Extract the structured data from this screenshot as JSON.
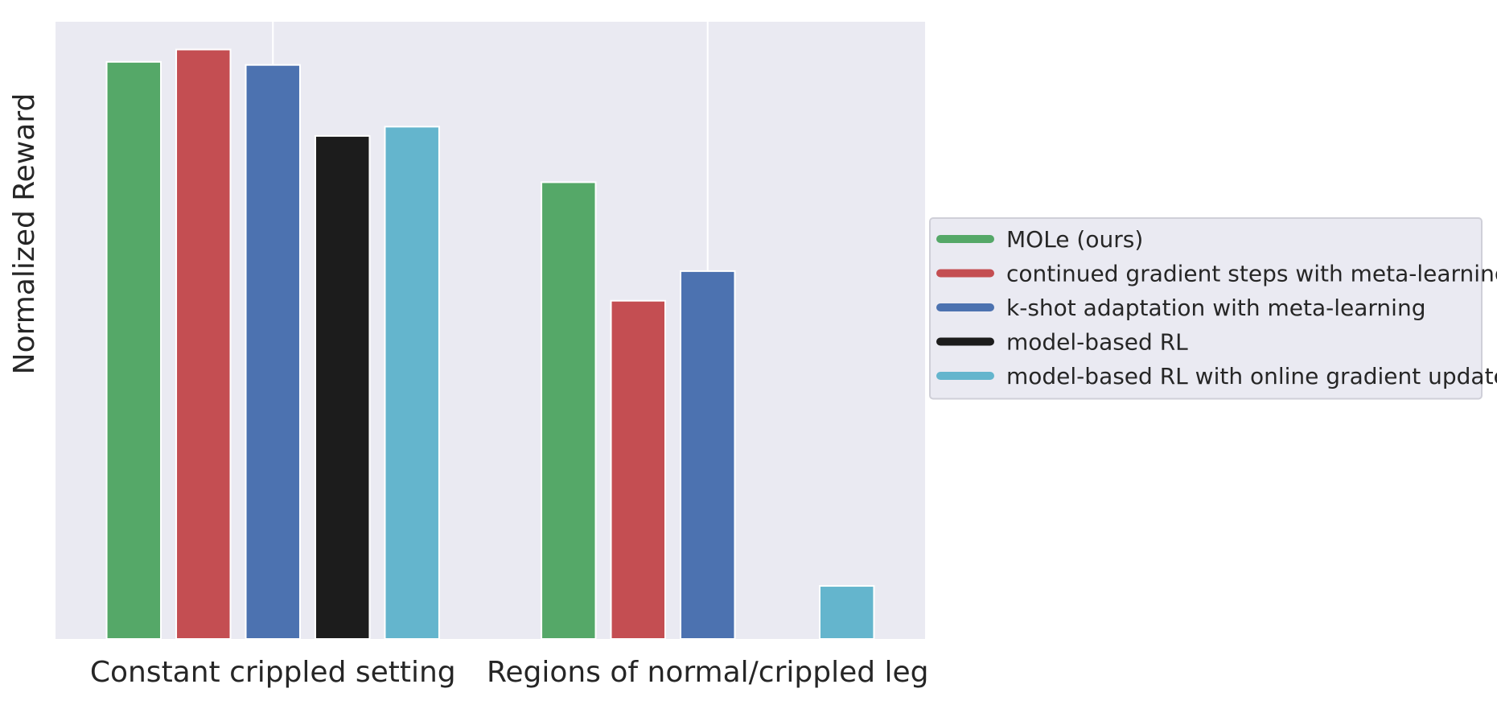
{
  "chart_data": {
    "type": "bar",
    "title": "",
    "xlabel": "",
    "ylabel": "Normalized Reward",
    "categories": [
      "Constant crippled setting",
      "Regions of normal/crippled leg"
    ],
    "series": [
      {
        "name": "MOLe (ours)",
        "color": "#55a868",
        "values": [
          0.935,
          0.74
        ]
      },
      {
        "name": "continued gradient steps with meta-learning",
        "color": "#c44e52",
        "values": [
          0.955,
          0.548
        ]
      },
      {
        "name": "k-shot adaptation with meta-learning",
        "color": "#4c72b0",
        "values": [
          0.93,
          0.596
        ]
      },
      {
        "name": "model-based RL",
        "color": "#1c1c1c",
        "values": [
          0.815,
          null
        ]
      },
      {
        "name": "model-based RL with online gradient updates",
        "color": "#64b5cd",
        "values": [
          0.83,
          0.086
        ]
      }
    ],
    "ylim": [
      0,
      1.0
    ],
    "y_ticks_shown": false,
    "grid": true,
    "legend_position": "outside-right",
    "background_color": "#eaeaf2"
  }
}
